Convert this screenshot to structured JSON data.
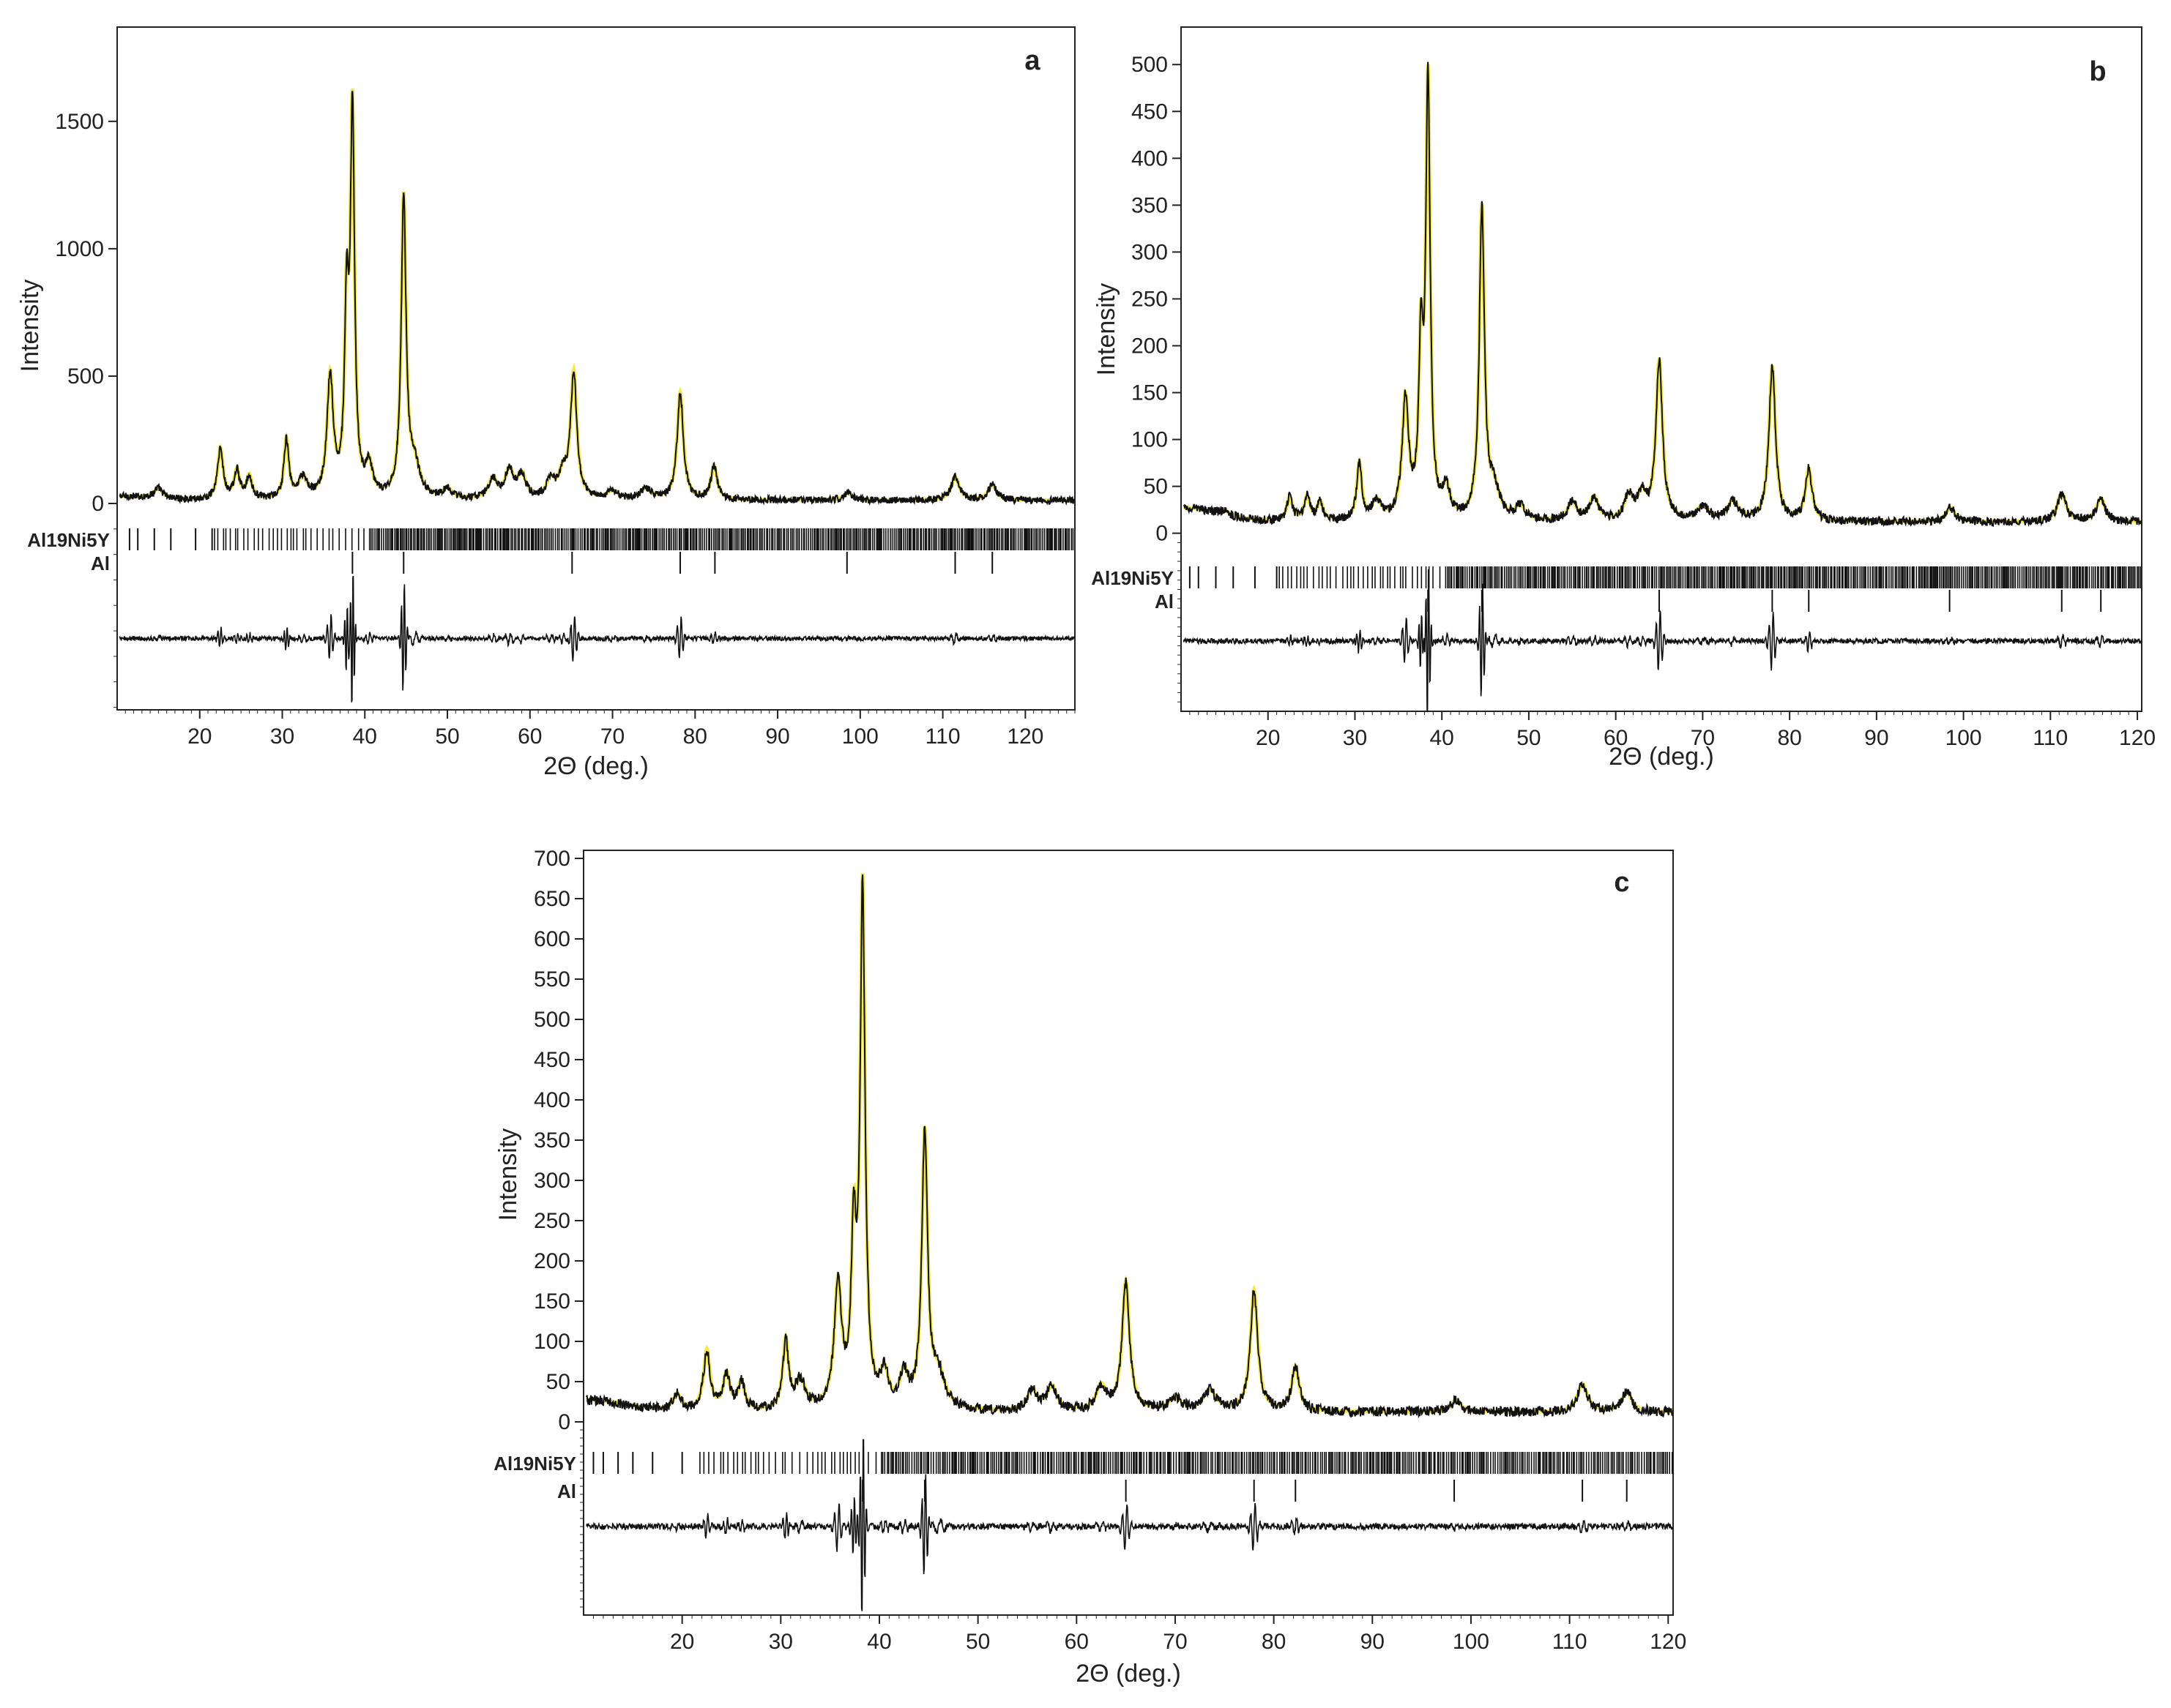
{
  "chart_data": [
    {
      "type": "line",
      "panel_label": "a",
      "xlabel": "2Θ (deg.)",
      "ylabel": "Intensity",
      "xlim": [
        10,
        126
      ],
      "ylim": [
        -810,
        1870
      ],
      "x_ticks": [
        20,
        30,
        40,
        50,
        60,
        70,
        80,
        90,
        100,
        110,
        120
      ],
      "y_ticks": [
        0,
        500,
        1000,
        1500
      ],
      "peaks": [
        {
          "x": 15.0,
          "y": 40,
          "w": 0.6
        },
        {
          "x": 22.5,
          "y": 200,
          "w": 0.4
        },
        {
          "x": 24.5,
          "y": 110,
          "w": 0.4
        },
        {
          "x": 26.0,
          "y": 90,
          "w": 0.4
        },
        {
          "x": 30.5,
          "y": 230,
          "w": 0.35
        },
        {
          "x": 32.5,
          "y": 80,
          "w": 0.6
        },
        {
          "x": 35.8,
          "y": 470,
          "w": 0.45
        },
        {
          "x": 37.8,
          "y": 700,
          "w": 0.3
        },
        {
          "x": 38.5,
          "y": 1480,
          "w": 0.3
        },
        {
          "x": 40.5,
          "y": 120,
          "w": 0.5
        },
        {
          "x": 44.7,
          "y": 1170,
          "w": 0.35
        },
        {
          "x": 46.0,
          "y": 120,
          "w": 0.8
        },
        {
          "x": 50.0,
          "y": 40,
          "w": 0.6
        },
        {
          "x": 55.5,
          "y": 80,
          "w": 0.6
        },
        {
          "x": 57.5,
          "y": 110,
          "w": 0.6
        },
        {
          "x": 59.0,
          "y": 90,
          "w": 0.6
        },
        {
          "x": 62.5,
          "y": 70,
          "w": 0.6
        },
        {
          "x": 64.0,
          "y": 90,
          "w": 0.6
        },
        {
          "x": 65.3,
          "y": 490,
          "w": 0.45
        },
        {
          "x": 70.0,
          "y": 30,
          "w": 0.8
        },
        {
          "x": 74.0,
          "y": 40,
          "w": 0.8
        },
        {
          "x": 78.2,
          "y": 420,
          "w": 0.45
        },
        {
          "x": 82.3,
          "y": 130,
          "w": 0.45
        },
        {
          "x": 98.5,
          "y": 30,
          "w": 0.6
        },
        {
          "x": 111.5,
          "y": 90,
          "w": 0.6
        },
        {
          "x": 116.0,
          "y": 60,
          "w": 0.6
        }
      ],
      "phases": [
        {
          "name": "Al19Ni5Y",
          "sparse_ticks": [
            11.5,
            12.5,
            14.5,
            16.5,
            19.5,
            21.5
          ],
          "dense_range": [
            21.8,
            126
          ]
        },
        {
          "name": "Al",
          "sparse_ticks": [
            38.5,
            44.7,
            65.1,
            78.2,
            82.4,
            98.4,
            111.5,
            116.0
          ],
          "dense_range": null
        }
      ],
      "difference_offset": -530
    },
    {
      "type": "line",
      "panel_label": "b",
      "xlabel": "2Θ (deg.)",
      "ylabel": "Intensity",
      "xlim": [
        10,
        120.5
      ],
      "ylim": [
        -190,
        540
      ],
      "x_ticks": [
        20,
        30,
        40,
        50,
        60,
        70,
        80,
        90,
        100,
        110,
        120
      ],
      "y_ticks": [
        0,
        50,
        100,
        150,
        200,
        250,
        300,
        350,
        400,
        450,
        500
      ],
      "peaks": [
        {
          "x": 15.0,
          "y": 5,
          "w": 0.6
        },
        {
          "x": 22.5,
          "y": 25,
          "w": 0.4
        },
        {
          "x": 24.5,
          "y": 25,
          "w": 0.4
        },
        {
          "x": 26.0,
          "y": 20,
          "w": 0.4
        },
        {
          "x": 30.5,
          "y": 60,
          "w": 0.35
        },
        {
          "x": 32.5,
          "y": 20,
          "w": 0.6
        },
        {
          "x": 35.8,
          "y": 125,
          "w": 0.45
        },
        {
          "x": 37.6,
          "y": 170,
          "w": 0.3
        },
        {
          "x": 38.4,
          "y": 460,
          "w": 0.3
        },
        {
          "x": 40.5,
          "y": 30,
          "w": 0.5
        },
        {
          "x": 44.6,
          "y": 330,
          "w": 0.35
        },
        {
          "x": 46.0,
          "y": 30,
          "w": 0.8
        },
        {
          "x": 49.0,
          "y": 15,
          "w": 0.6
        },
        {
          "x": 55.0,
          "y": 20,
          "w": 0.6
        },
        {
          "x": 57.5,
          "y": 25,
          "w": 0.6
        },
        {
          "x": 61.5,
          "y": 25,
          "w": 0.6
        },
        {
          "x": 63.0,
          "y": 25,
          "w": 0.6
        },
        {
          "x": 65.0,
          "y": 170,
          "w": 0.45
        },
        {
          "x": 70.0,
          "y": 15,
          "w": 0.8
        },
        {
          "x": 73.5,
          "y": 20,
          "w": 0.8
        },
        {
          "x": 78.0,
          "y": 165,
          "w": 0.45
        },
        {
          "x": 82.2,
          "y": 55,
          "w": 0.45
        },
        {
          "x": 98.5,
          "y": 15,
          "w": 0.6
        },
        {
          "x": 111.3,
          "y": 30,
          "w": 0.6
        },
        {
          "x": 115.8,
          "y": 25,
          "w": 0.6
        }
      ],
      "phases": [
        {
          "name": "Al19Ni5Y",
          "sparse_ticks": [
            11,
            12,
            14,
            16,
            18.5,
            21
          ],
          "dense_range": [
            21.3,
            120.5
          ]
        },
        {
          "name": "Al",
          "sparse_ticks": [
            38.4,
            44.6,
            65.0,
            78.0,
            82.2,
            98.4,
            111.3,
            115.8
          ],
          "dense_range": null
        }
      ],
      "difference_offset": -115
    },
    {
      "type": "line",
      "panel_label": "c",
      "xlabel": "2Θ (deg.)",
      "ylabel": "Intensity",
      "xlim": [
        10,
        120.5
      ],
      "ylim": [
        -240,
        710
      ],
      "x_ticks": [
        20,
        30,
        40,
        50,
        60,
        70,
        80,
        90,
        100,
        110,
        120
      ],
      "y_ticks": [
        0,
        50,
        100,
        150,
        200,
        250,
        300,
        350,
        400,
        450,
        500,
        550,
        600,
        650,
        700
      ],
      "peaks": [
        {
          "x": 19.5,
          "y": 20,
          "w": 0.5
        },
        {
          "x": 22.5,
          "y": 75,
          "w": 0.4
        },
        {
          "x": 24.5,
          "y": 45,
          "w": 0.4
        },
        {
          "x": 26.0,
          "y": 35,
          "w": 0.4
        },
        {
          "x": 30.5,
          "y": 85,
          "w": 0.35
        },
        {
          "x": 32.0,
          "y": 35,
          "w": 0.6
        },
        {
          "x": 35.8,
          "y": 150,
          "w": 0.45
        },
        {
          "x": 37.4,
          "y": 200,
          "w": 0.3
        },
        {
          "x": 38.3,
          "y": 640,
          "w": 0.3
        },
        {
          "x": 40.5,
          "y": 40,
          "w": 0.5
        },
        {
          "x": 42.5,
          "y": 40,
          "w": 0.5
        },
        {
          "x": 44.6,
          "y": 340,
          "w": 0.35
        },
        {
          "x": 46.0,
          "y": 40,
          "w": 0.8
        },
        {
          "x": 55.5,
          "y": 25,
          "w": 0.6
        },
        {
          "x": 57.5,
          "y": 30,
          "w": 0.6
        },
        {
          "x": 62.5,
          "y": 30,
          "w": 0.6
        },
        {
          "x": 65.0,
          "y": 160,
          "w": 0.45
        },
        {
          "x": 70.0,
          "y": 15,
          "w": 0.8
        },
        {
          "x": 73.5,
          "y": 25,
          "w": 0.8
        },
        {
          "x": 78.0,
          "y": 150,
          "w": 0.45
        },
        {
          "x": 82.2,
          "y": 55,
          "w": 0.45
        },
        {
          "x": 98.5,
          "y": 15,
          "w": 0.6
        },
        {
          "x": 111.3,
          "y": 35,
          "w": 0.6
        },
        {
          "x": 115.8,
          "y": 25,
          "w": 0.6
        }
      ],
      "phases": [
        {
          "name": "Al19Ni5Y",
          "sparse_ticks": [
            11,
            12,
            13.5,
            15,
            17,
            20
          ],
          "dense_range": [
            21.8,
            120.5
          ]
        },
        {
          "name": "Al",
          "sparse_ticks": [
            38.3,
            44.6,
            65.0,
            78.0,
            82.2,
            98.3,
            111.3,
            115.8
          ],
          "dense_range": null
        }
      ],
      "difference_offset": -130
    }
  ]
}
